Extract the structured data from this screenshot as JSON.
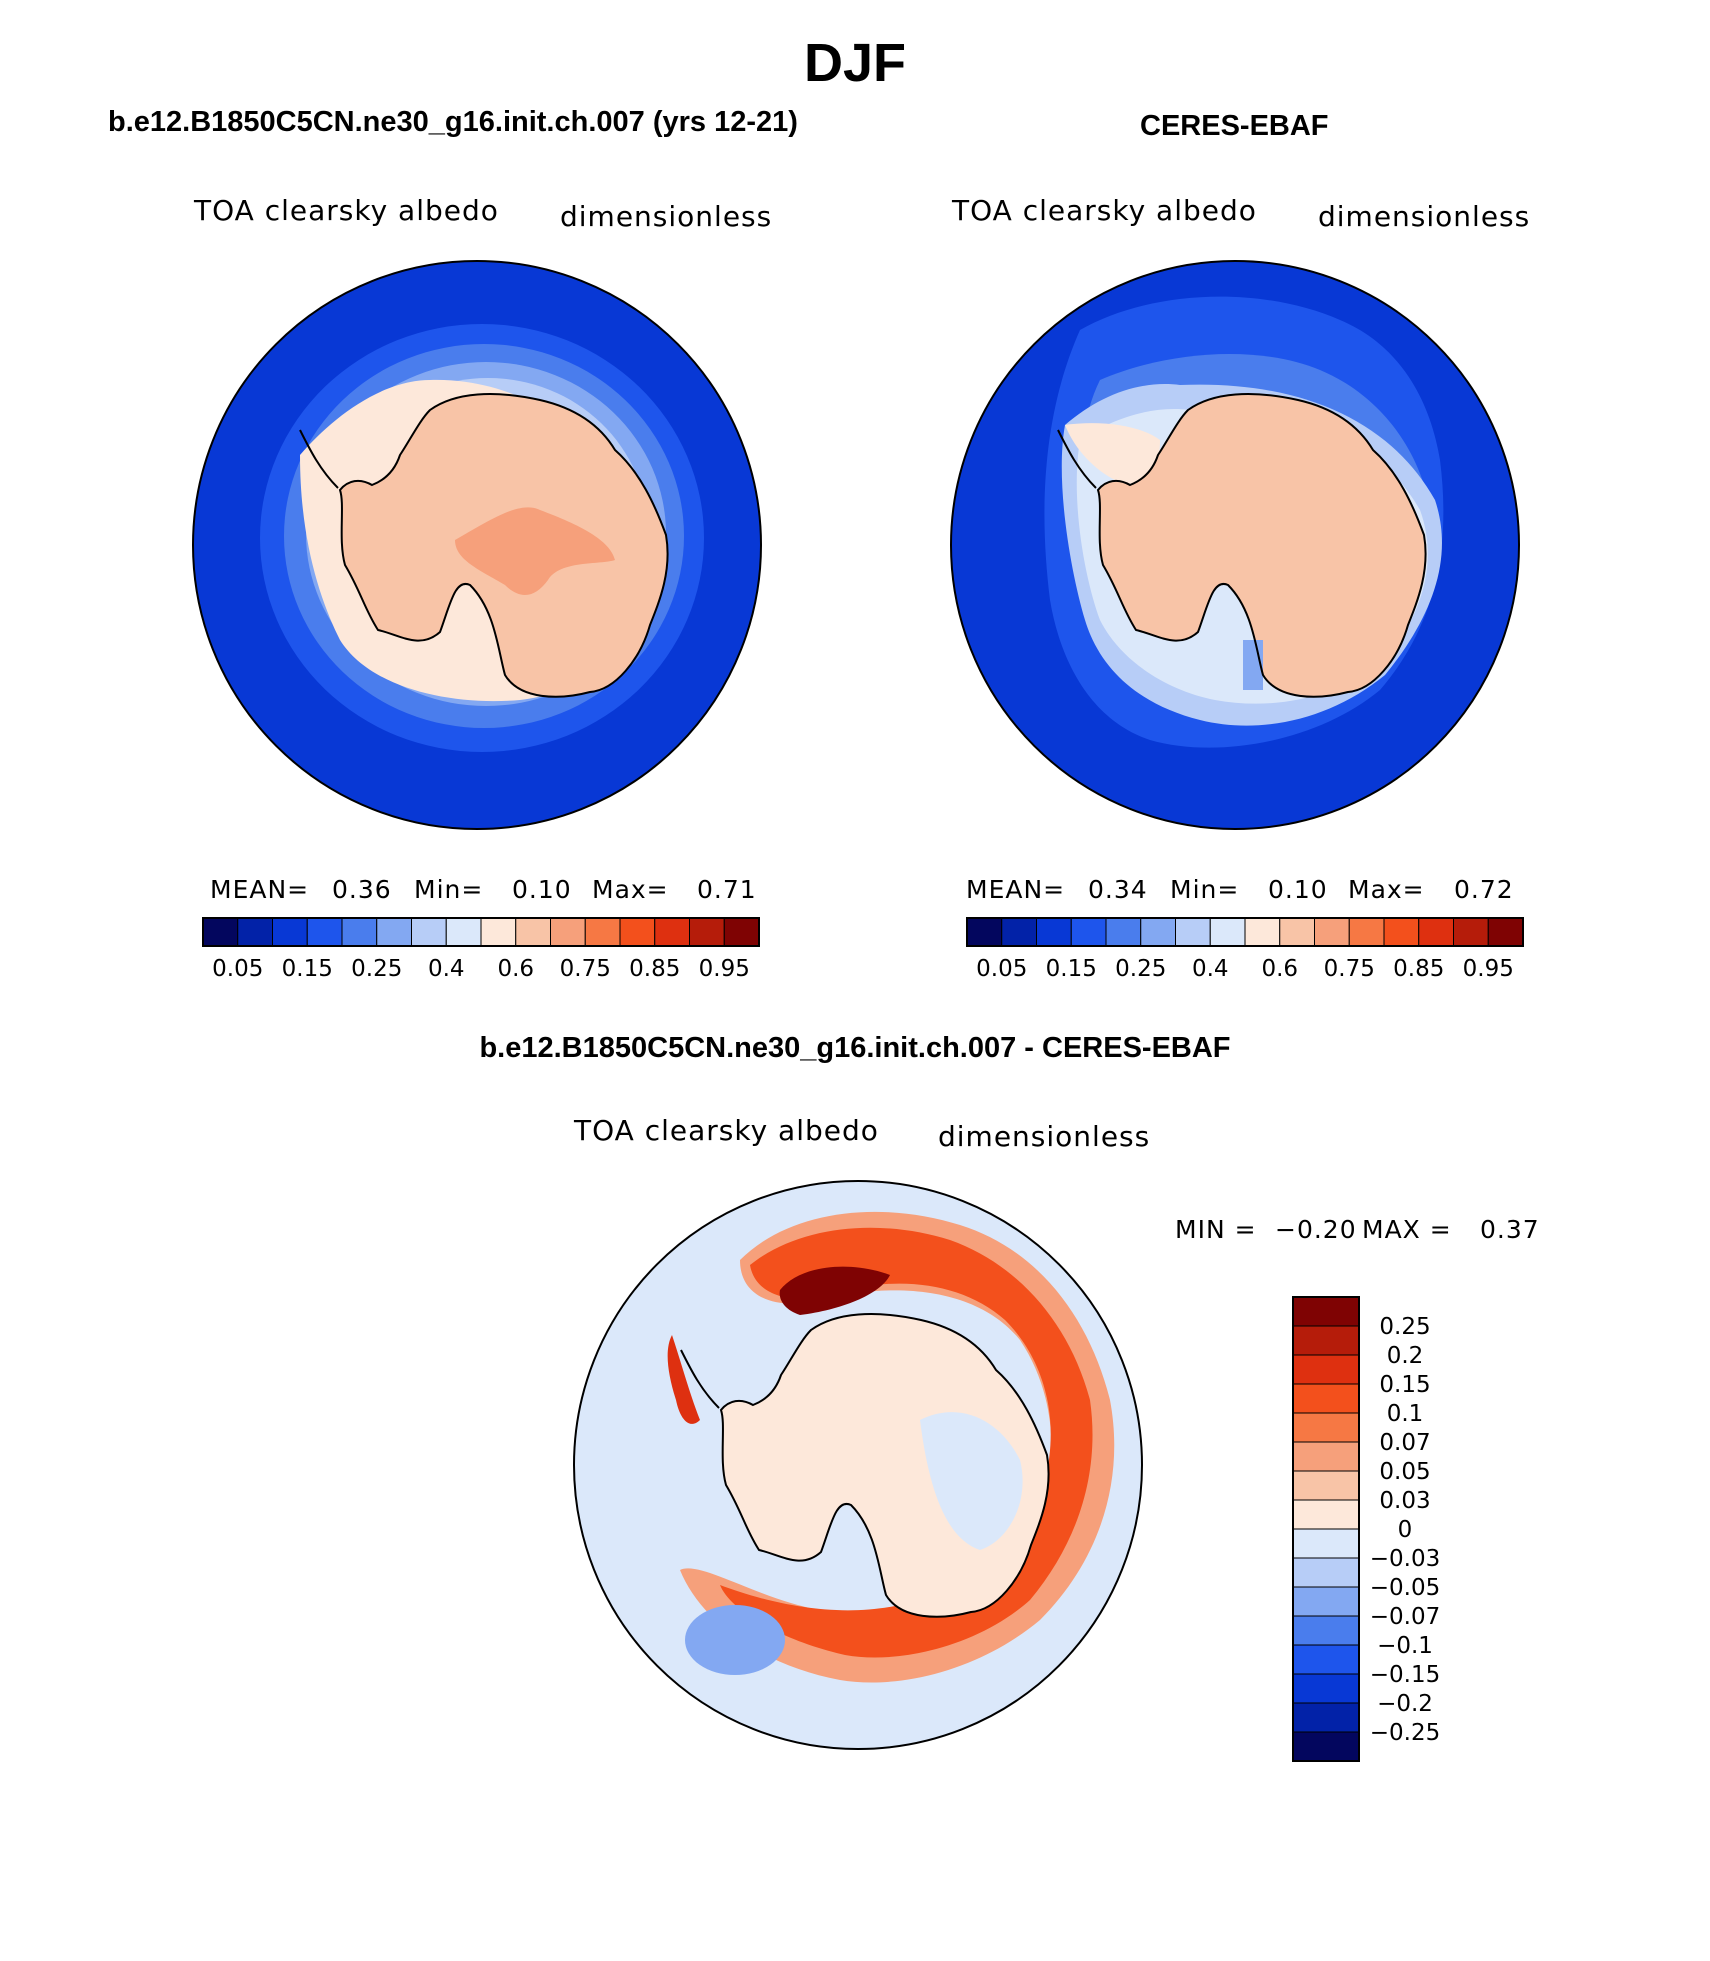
{
  "figure": {
    "title": "DJF",
    "panels": [
      {
        "id": "model",
        "title": "b.e12.B1850C5CN.ne30_g16.init.ch.007 (yrs 12-21)",
        "variable": "TOA clearsky albedo",
        "units": "dimensionless",
        "stats": {
          "mean_label": "MEAN=",
          "mean": "0.36",
          "min_label": "Min=",
          "min": "0.10",
          "max_label": "Max=",
          "max": "0.71"
        }
      },
      {
        "id": "obs",
        "title": "CERES-EBAF",
        "variable": "TOA clearsky albedo",
        "units": "dimensionless",
        "stats": {
          "mean_label": "MEAN=",
          "mean": "0.34",
          "min_label": "Min=",
          "min": "0.10",
          "max_label": "Max=",
          "max": "0.72"
        }
      },
      {
        "id": "diff",
        "title": "b.e12.B1850C5CN.ne30_g16.init.ch.007 - CERES-EBAF",
        "variable": "TOA clearsky albedo",
        "units": "dimensionless",
        "stats": {
          "min_label": "MIN =",
          "min": "−0.20",
          "max_label": "MAX =",
          "max": "0.37"
        }
      }
    ]
  },
  "chart_data": [
    {
      "type": "heatmap",
      "projection": "south-polar-stereographic",
      "title": "b.e12.B1850C5CN.ne30_g16.init.ch.007 (yrs 12-21)",
      "variable": "TOA clearsky albedo",
      "units": "dimensionless",
      "colorbar_orientation": "horizontal",
      "colorbar_labels": [
        "0.05",
        "0.15",
        "0.25",
        "0.4",
        "0.6",
        "0.75",
        "0.85",
        "0.95"
      ],
      "colors": [
        "#03065e",
        "#0222a8",
        "#0838d5",
        "#1e55ec",
        "#4a7ded",
        "#83a8f2",
        "#b7cdf7",
        "#dbe8fa",
        "#fde8da",
        "#f8c4a7",
        "#f6a07b",
        "#f67844",
        "#f3501c",
        "#de3010",
        "#b51c0a",
        "#7f0303"
      ],
      "mean": 0.36,
      "min": 0.1,
      "max": 0.71
    },
    {
      "type": "heatmap",
      "projection": "south-polar-stereographic",
      "title": "CERES-EBAF",
      "variable": "TOA clearsky albedo",
      "units": "dimensionless",
      "colorbar_orientation": "horizontal",
      "colorbar_labels": [
        "0.05",
        "0.15",
        "0.25",
        "0.4",
        "0.6",
        "0.75",
        "0.85",
        "0.95"
      ],
      "colors": [
        "#03065e",
        "#0222a8",
        "#0838d5",
        "#1e55ec",
        "#4a7ded",
        "#83a8f2",
        "#b7cdf7",
        "#dbe8fa",
        "#fde8da",
        "#f8c4a7",
        "#f6a07b",
        "#f67844",
        "#f3501c",
        "#de3010",
        "#b51c0a",
        "#7f0303"
      ],
      "mean": 0.34,
      "min": 0.1,
      "max": 0.72
    },
    {
      "type": "heatmap",
      "projection": "south-polar-stereographic",
      "title": "b.e12.B1850C5CN.ne30_g16.init.ch.007 - CERES-EBAF",
      "variable": "TOA clearsky albedo",
      "units": "dimensionless",
      "colorbar_orientation": "vertical",
      "colorbar_labels": [
        "0.25",
        "0.2",
        "0.15",
        "0.1",
        "0.07",
        "0.05",
        "0.03",
        "0",
        "−0.03",
        "−0.05",
        "−0.07",
        "−0.1",
        "−0.15",
        "−0.2",
        "−0.25"
      ],
      "colors": [
        "#7f0303",
        "#b51c0a",
        "#de3010",
        "#f3501c",
        "#f67844",
        "#f6a07b",
        "#f8c4a7",
        "#fde8da",
        "#dbe8fa",
        "#b7cdf7",
        "#83a8f2",
        "#4a7ded",
        "#1e55ec",
        "#0838d5",
        "#0222a8",
        "#03065e"
      ],
      "min": -0.2,
      "max": 0.37
    }
  ]
}
